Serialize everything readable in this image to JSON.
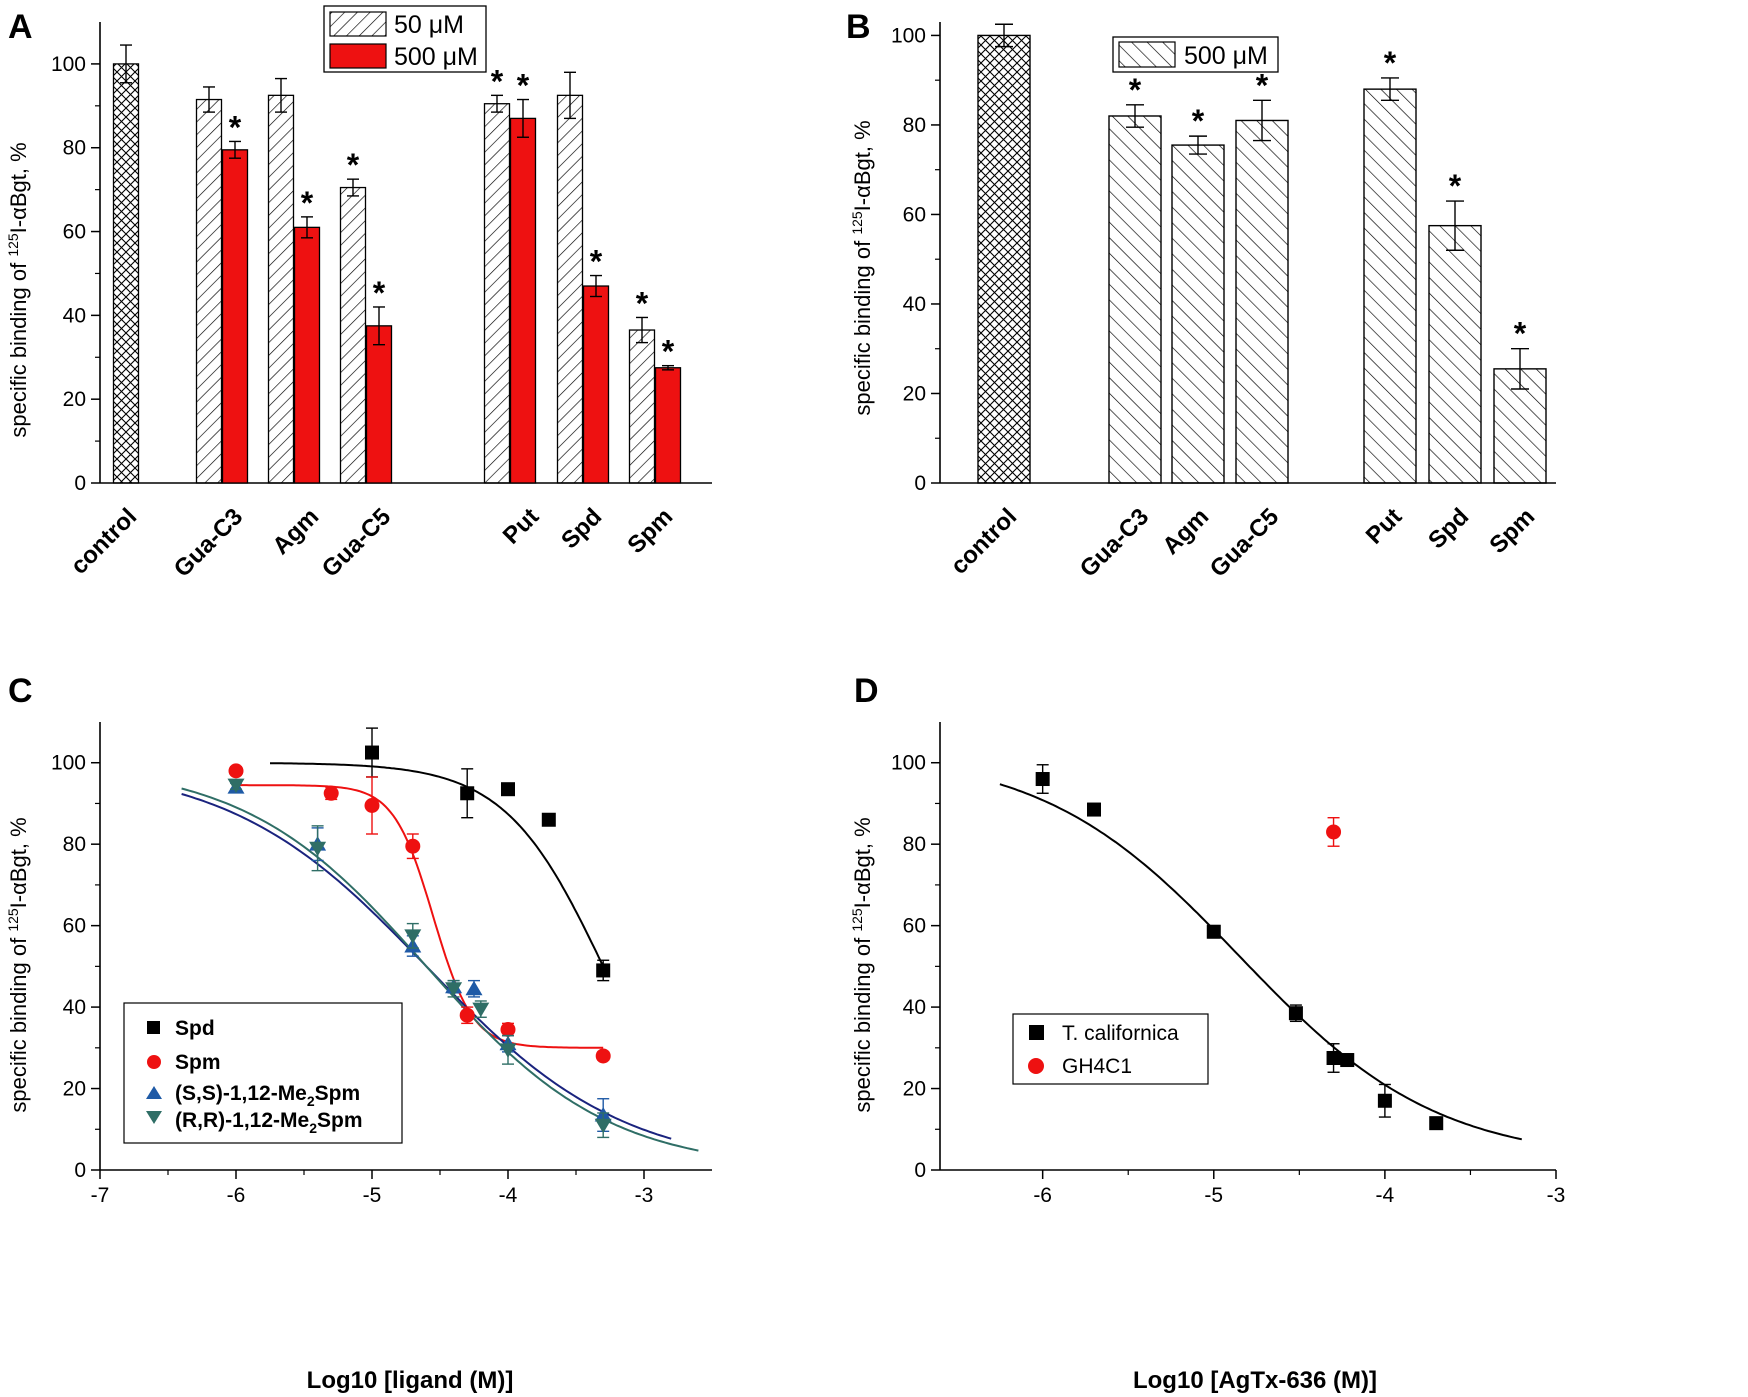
{
  "colors": {
    "red": "#ee1111",
    "black": "#000000",
    "blue": "#1f5aa6",
    "teal": "#2f6e66",
    "navy": "#1a237e"
  },
  "chart_data": [
    {
      "type": "bar",
      "panel": "A",
      "ylabel": "specific binding of 125I-αBgt, %",
      "ylabel_parts": {
        "pre": "specific binding of ",
        "sup": "125",
        "post": "I-αBgt, %"
      },
      "ylim": [
        0,
        110
      ],
      "yticks": [
        0,
        20,
        40,
        60,
        80,
        100
      ],
      "legend": {
        "position": "top-center",
        "items": [
          "50 μM",
          "500 μM"
        ]
      },
      "categories": [
        "control",
        "Gua-C3",
        "Agm",
        "Gua-C5",
        "Put",
        "Spd",
        "Spm"
      ],
      "control": {
        "value": 100,
        "err": 4.5
      },
      "series": [
        {
          "name": "50 μM",
          "pattern": "hatched",
          "values": [
            null,
            91.5,
            92.5,
            70.5,
            90.5,
            92.5,
            36.5
          ],
          "errors": [
            null,
            3,
            4,
            2,
            2,
            5.5,
            3
          ],
          "significant": [
            false,
            false,
            false,
            true,
            true,
            false,
            true
          ]
        },
        {
          "name": "500 μM",
          "color": "red",
          "values": [
            null,
            79.5,
            61,
            37.5,
            87,
            47,
            27.5
          ],
          "errors": [
            null,
            2,
            2.5,
            4.5,
            4.5,
            2.5,
            0.5
          ],
          "significant": [
            false,
            true,
            true,
            true,
            true,
            true,
            true
          ]
        }
      ],
      "annotation": "*"
    },
    {
      "type": "bar",
      "panel": "B",
      "ylabel": "specific binding of 125I-αBgt, %",
      "ylabel_parts": {
        "pre": "specific binding of ",
        "sup": "125",
        "post": "I-αBgt, %"
      },
      "ylim": [
        0,
        103
      ],
      "yticks": [
        0,
        20,
        40,
        60,
        80,
        100
      ],
      "legend": {
        "position": "top-center",
        "items": [
          "500 μM"
        ]
      },
      "categories": [
        "control",
        "Gua-C3",
        "Agm",
        "Gua-C5",
        "Put",
        "Spd",
        "Spm"
      ],
      "values": [
        100,
        82,
        75.5,
        81,
        88,
        57.5,
        25.5
      ],
      "errors": [
        2.5,
        2.5,
        2,
        4.5,
        2.5,
        5.5,
        4.5
      ],
      "significant": [
        false,
        true,
        true,
        true,
        true,
        true,
        true
      ],
      "annotation": "*"
    },
    {
      "type": "scatter",
      "panel": "C",
      "xlabel": "Log10 [ligand (M)]",
      "ylabel": "specific binding of 125I-αBgt, %",
      "ylabel_parts": {
        "pre": "specific binding of ",
        "sup": "125",
        "post": "I-αBgt, %"
      },
      "xlim": [
        -7,
        -2.5
      ],
      "ylim": [
        0,
        110
      ],
      "xticks": [
        -7,
        -6,
        -5,
        -4,
        -3
      ],
      "yticks": [
        0,
        20,
        40,
        60,
        80,
        100
      ],
      "legend": {
        "position": "bottom-left"
      },
      "series": [
        {
          "name": "Spd",
          "marker": "square",
          "color": "black",
          "x": [
            -5,
            -4.3,
            -4,
            -3.7,
            -3.3
          ],
          "y": [
            102.5,
            92.5,
            93.5,
            86,
            49
          ],
          "err": [
            6,
            6,
            1,
            1,
            2.5
          ],
          "fit": {
            "top": 100,
            "bottom": 0,
            "logic50": -3.3,
            "hill": 1.2,
            "xrange": [
              -5.75,
              -3.3
            ]
          }
        },
        {
          "name": "Spm",
          "marker": "circle",
          "color": "red",
          "x": [
            -6,
            -5.3,
            -5,
            -4.7,
            -4.3,
            -4,
            -3.3
          ],
          "y": [
            98,
            92.5,
            89.5,
            79.5,
            38,
            34.5,
            28
          ],
          "err": [
            1,
            1.5,
            7,
            3,
            2,
            1.5,
            1
          ],
          "fit": {
            "top": 94.5,
            "bottom": 30,
            "logic50": -4.55,
            "hill": 3,
            "xrange": [
              -6,
              -3.3
            ]
          }
        },
        {
          "name": "(S,S)-1,12-Me2Spm",
          "label_parts": {
            "pre": "(S,S)-1,12-Me",
            "sub": "2",
            "post": "Spm"
          },
          "marker": "triangle-up",
          "color": "blue",
          "x": [
            -6,
            -5.4,
            -4.7,
            -4.4,
            -4.25,
            -4,
            -3.3
          ],
          "y": [
            94,
            80,
            55,
            45,
            44.5,
            31,
            13.5
          ],
          "err": [
            1,
            4,
            2.5,
            1.5,
            2,
            2,
            4
          ],
          "fit": {
            "top": 100,
            "bottom": 0,
            "logic50": -4.6,
            "hill": 0.6,
            "xrange": [
              -6.4,
              -2.8
            ]
          }
        },
        {
          "name": "(R,R)-1,12-Me2Spm",
          "label_parts": {
            "pre": "(R,R)-1,12-Me",
            "sub": "2",
            "post": "Spm"
          },
          "marker": "triangle-down",
          "color": "teal",
          "x": [
            -6,
            -5.4,
            -4.7,
            -4.4,
            -4.2,
            -4,
            -3.3
          ],
          "y": [
            94.5,
            79,
            57.5,
            44.5,
            39.5,
            29.5,
            11
          ],
          "err": [
            1,
            5.5,
            3,
            2,
            2,
            3.5,
            3
          ],
          "fit": {
            "top": 100,
            "bottom": 0,
            "logic50": -4.6,
            "hill": 0.65,
            "xrange": [
              -6.4,
              -2.6
            ]
          }
        }
      ]
    },
    {
      "type": "scatter",
      "panel": "D",
      "xlabel": "Log10 [AgTx-636 (M)]",
      "ylabel": "specific binding of 125I-αBgt, %",
      "ylabel_parts": {
        "pre": "specific binding of ",
        "sup": "125",
        "post": "I-αBgt, %"
      },
      "xlim": [
        -6.6,
        -3
      ],
      "ylim": [
        0,
        110
      ],
      "xticks": [
        -6,
        -5,
        -4,
        -3
      ],
      "yticks": [
        0,
        20,
        40,
        60,
        80,
        100
      ],
      "legend": {
        "position": "bottom-left"
      },
      "series": [
        {
          "name": "T. californica",
          "marker": "square",
          "color": "black",
          "x": [
            -6,
            -5.7,
            -5,
            -4.52,
            -4.3,
            -4.22,
            -4,
            -3.7
          ],
          "y": [
            96,
            88.5,
            58.5,
            38.5,
            27.5,
            27,
            17,
            11.5
          ],
          "err": [
            3.5,
            1.5,
            1.5,
            2,
            3.5,
            1.5,
            4,
            1
          ],
          "fit": {
            "top": 103,
            "bottom": 2,
            "logic50": -4.85,
            "hill": 0.75,
            "xrange": [
              -6.25,
              -3.2
            ]
          }
        },
        {
          "name": "GH4C1",
          "marker": "circle",
          "color": "red",
          "x": [
            -4.3
          ],
          "y": [
            83
          ],
          "err": [
            3.5
          ]
        }
      ]
    }
  ]
}
